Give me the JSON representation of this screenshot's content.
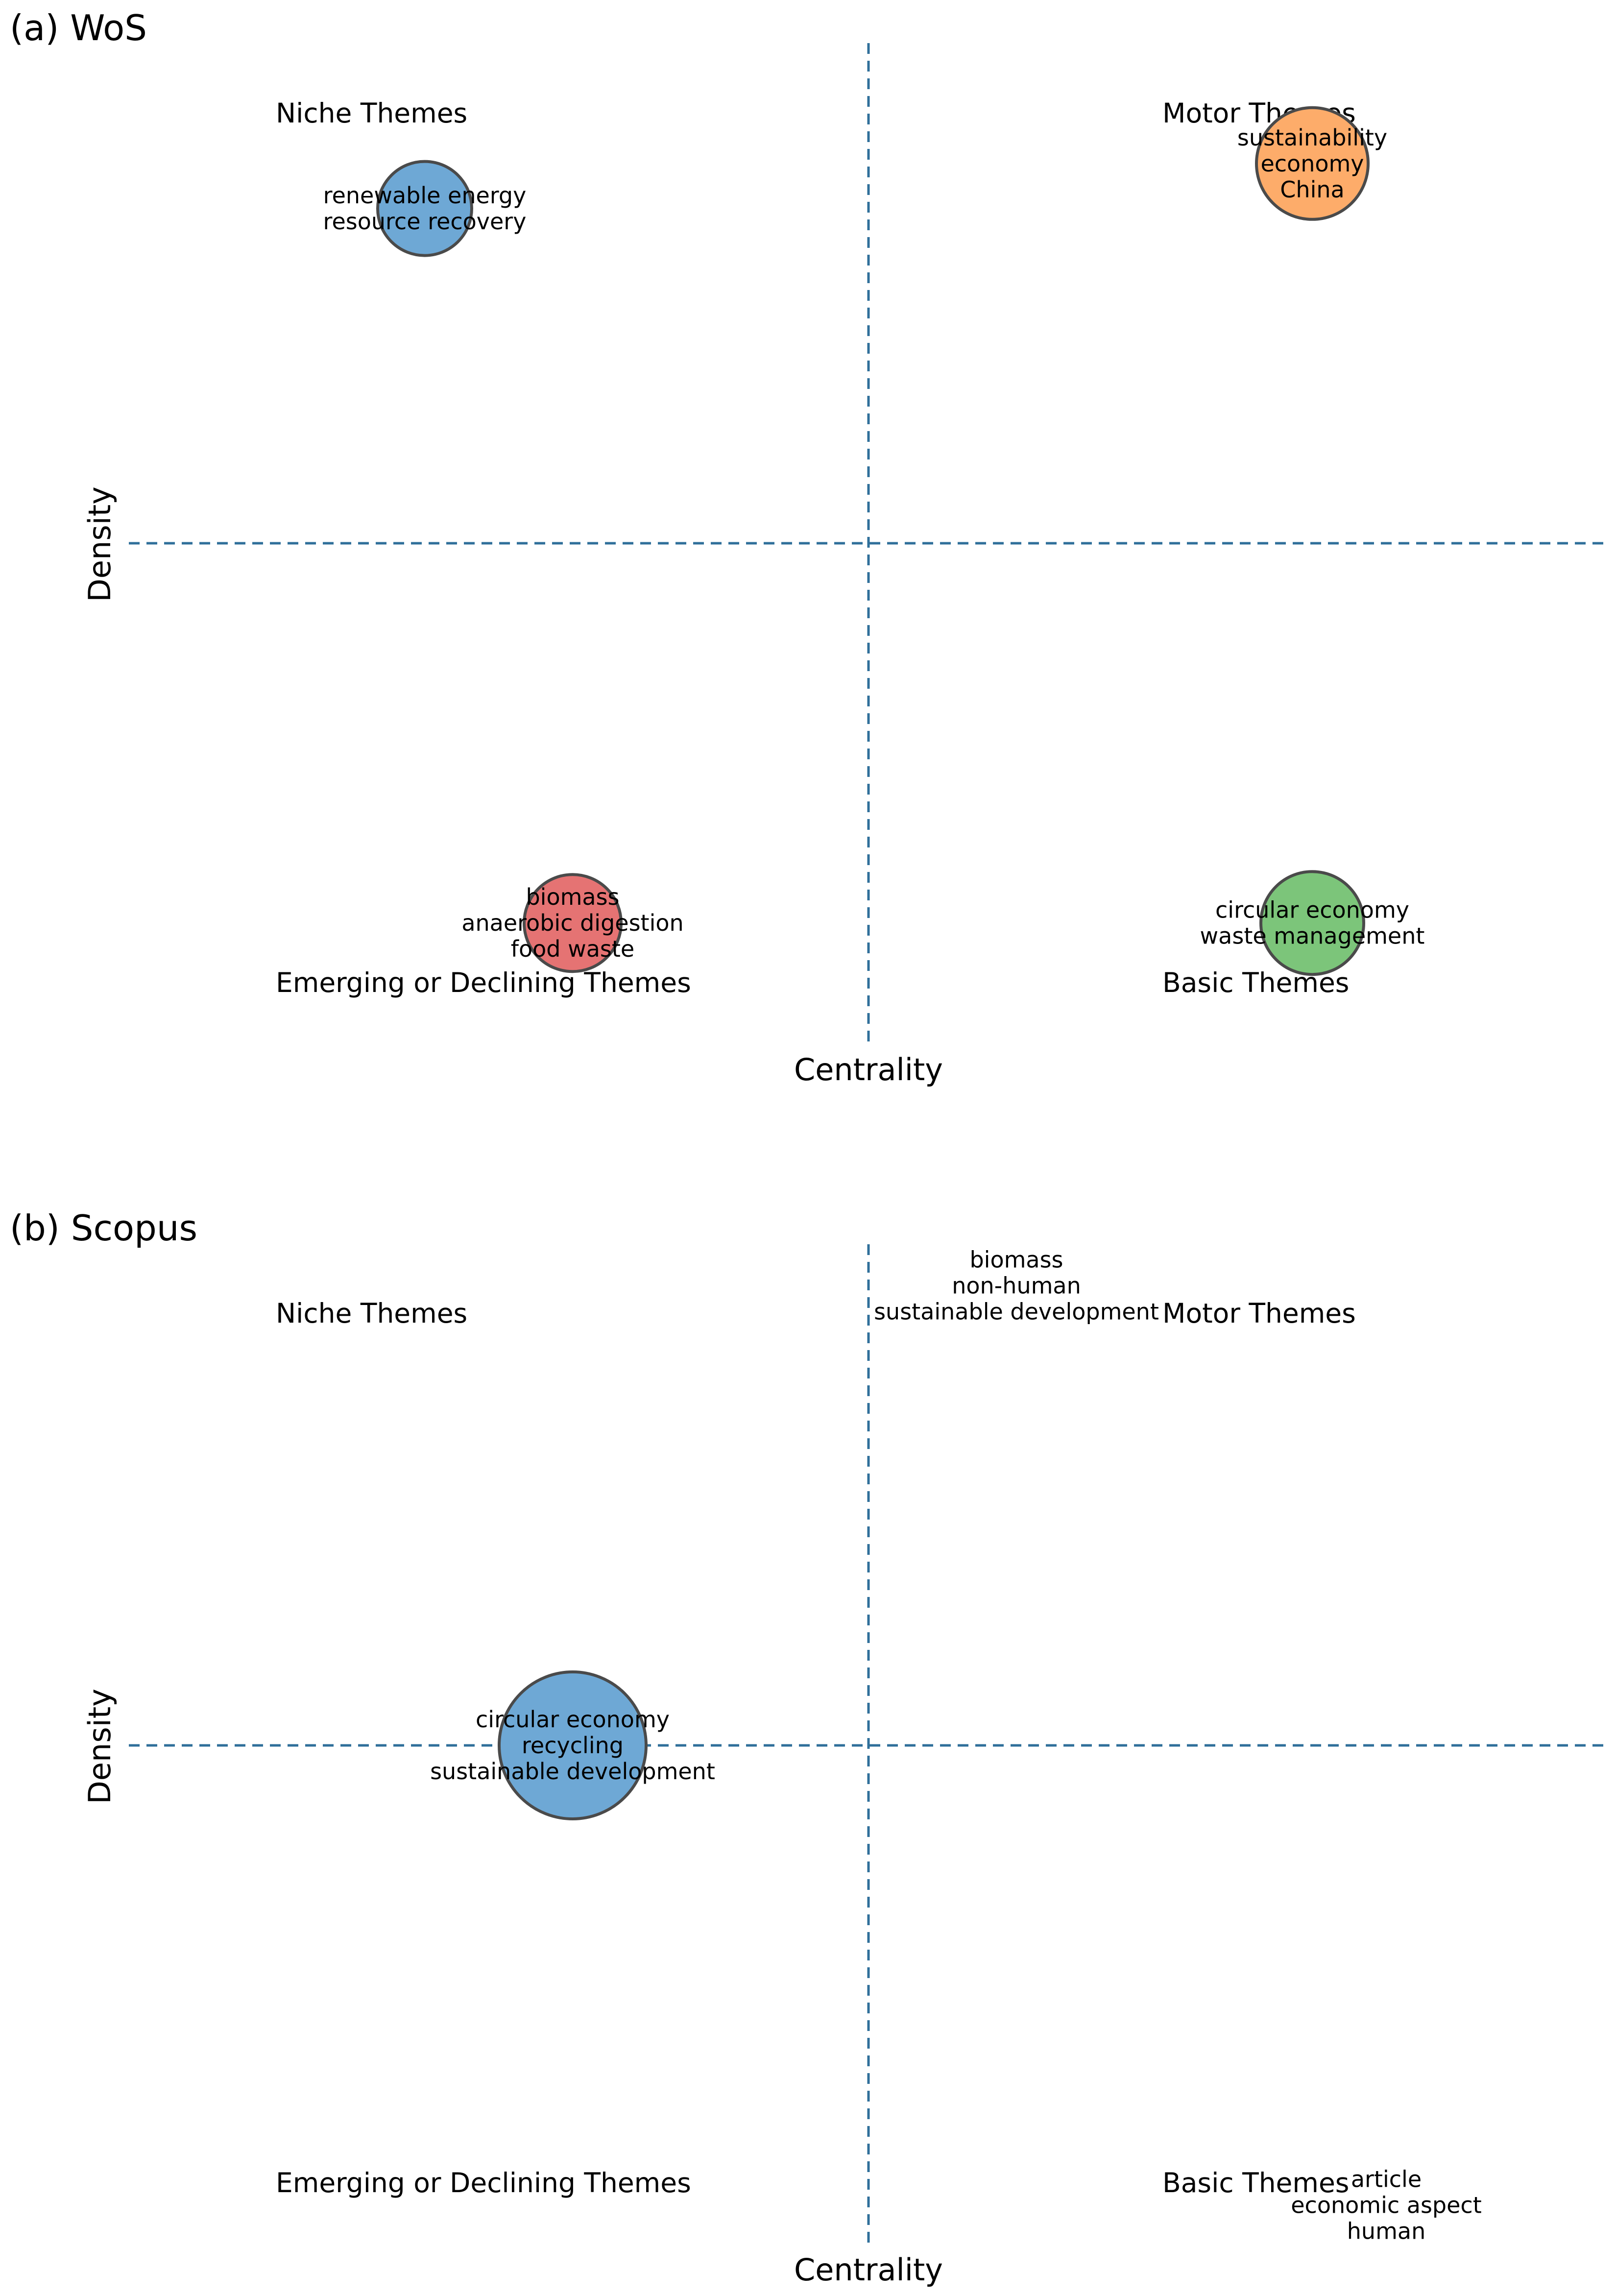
{
  "chart_data": [
    {
      "type": "scatter",
      "title": "(a) WoS",
      "xlabel": "Centrality",
      "ylabel": "Density",
      "quadrants": {
        "top_left": "Niche Themes",
        "top_right": "Motor Themes",
        "bottom_left": "Emerging or Declining Themes",
        "bottom_right": "Basic Themes"
      },
      "clusters": [
        {
          "labels": [
            "renewable energy",
            "resource recovery"
          ],
          "centrality": -0.6,
          "density": 0.67,
          "size": 0.32,
          "color": "#6ea8d5"
        },
        {
          "labels": [
            "sustainability",
            "economy",
            "China"
          ],
          "centrality": 0.6,
          "density": 0.76,
          "size": 0.38,
          "color": "#fdac6a"
        },
        {
          "labels": [
            "biomass",
            "anaerobic digestion",
            "food waste"
          ],
          "centrality": -0.4,
          "density": -0.76,
          "size": 0.33,
          "color": "#e57373"
        },
        {
          "labels": [
            "circular economy",
            "waste management"
          ],
          "centrality": 0.6,
          "density": -0.76,
          "size": 0.35,
          "color": "#7cc57a"
        }
      ]
    },
    {
      "type": "scatter",
      "title": "(b) Scopus",
      "xlabel": "Centrality",
      "ylabel": "Density",
      "quadrants": {
        "top_left": "Niche Themes",
        "top_right": "Motor Themes",
        "bottom_left": "Emerging or Declining Themes",
        "bottom_right": "Basic Themes"
      },
      "clusters": [
        {
          "labels": [
            "biomass",
            "non-human",
            "sustainable development"
          ],
          "centrality": 0.2,
          "density": 0.92,
          "size": 0,
          "color": "#6ea8d5"
        },
        {
          "labels": [
            "circular economy",
            "recycling",
            "sustainable development"
          ],
          "centrality": -0.4,
          "density": 0.0,
          "size": 0.5,
          "color": "#6ea8d5"
        },
        {
          "labels": [
            "article",
            "economic aspect",
            "human"
          ],
          "centrality": 0.7,
          "density": -0.92,
          "size": 0,
          "color": "#6ea8d5"
        }
      ]
    }
  ]
}
